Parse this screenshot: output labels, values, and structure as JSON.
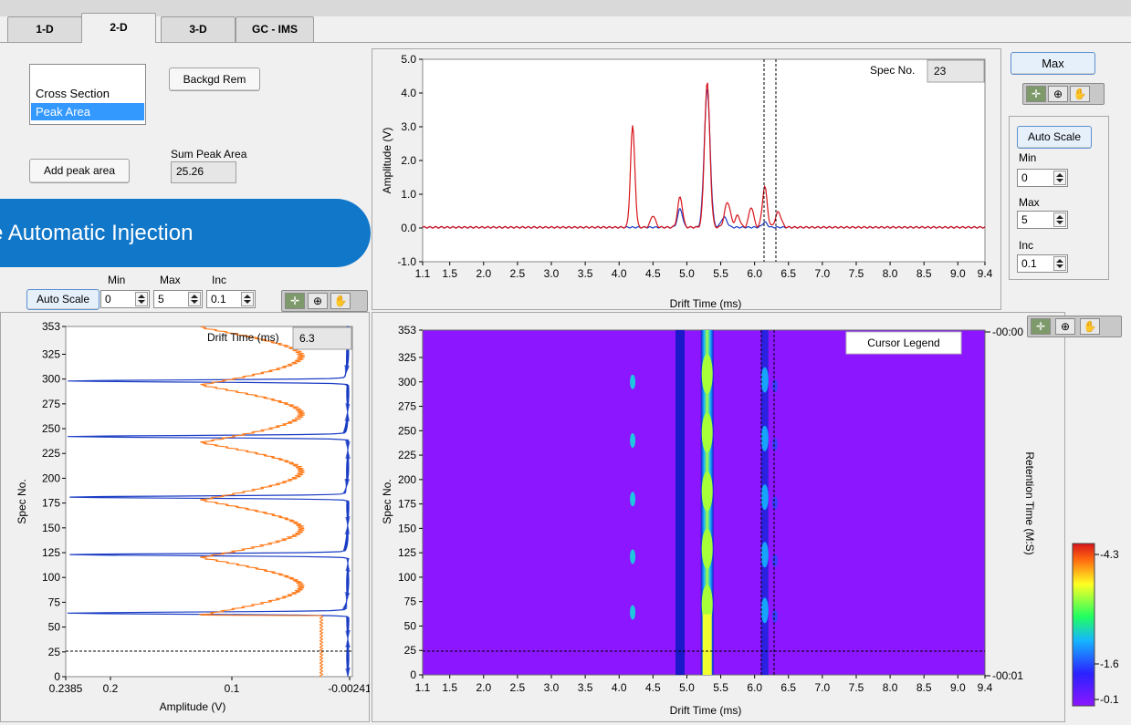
{
  "tabs": [
    {
      "label": "1-D",
      "active": false
    },
    {
      "label": "2-D",
      "active": true
    },
    {
      "label": "3-D",
      "active": false
    },
    {
      "label": "GC - IMS",
      "active": false
    }
  ],
  "mode_list": {
    "items": [
      "Cross Section",
      "Peak Area"
    ],
    "selected": "Peak Area"
  },
  "buttons": {
    "background_removal": "Backgd Rem",
    "add_peak_area": "Add peak area",
    "max": "Max",
    "auto_scale": "Auto Scale"
  },
  "sum_peak_area": {
    "label": "Sum Peak Area",
    "value": "25.26"
  },
  "banner": {
    "text": "e Automatic Injection"
  },
  "left_scale": {
    "min_label": "Min",
    "max_label": "Max",
    "inc_label": "Inc",
    "min": "0",
    "max": "5",
    "inc": "0.1"
  },
  "right_scale": {
    "min_label": "Min",
    "max_label": "Max",
    "inc_label": "Inc",
    "min": "0",
    "max": "5",
    "inc": "0.1"
  },
  "top_plot": {
    "spec_label": "Spec No.",
    "spec_value": "23",
    "x_label": "Drift Time (ms)",
    "y_label": "Amplitude (V)",
    "x_ticks": [
      "1.1",
      "1.5",
      "2.0",
      "2.5",
      "3.0",
      "3.5",
      "4.0",
      "4.5",
      "5.0",
      "5.5",
      "6.0",
      "6.5",
      "7.0",
      "7.5",
      "8.0",
      "8.5",
      "9.0",
      "9.4"
    ],
    "y_ticks": [
      "5.0",
      "4.0",
      "3.0",
      "2.0",
      "1.0",
      "0.0",
      "-1.0"
    ]
  },
  "left_plot": {
    "drift_label": "Drift Time (ms)",
    "drift_value": "6.3",
    "x_label": "Amplitude (V)",
    "y_label": "Spec No.",
    "x_ticks": [
      "0.2385",
      "0.2",
      "0.1",
      "-0.00241"
    ],
    "y_ticks": [
      "353",
      "325",
      "300",
      "275",
      "250",
      "225",
      "200",
      "175",
      "150",
      "125",
      "100",
      "75",
      "50",
      "25",
      "0"
    ]
  },
  "intensity_plot": {
    "x_label": "Drift Time (ms)",
    "y_label": "Spec No.",
    "right_label": "Retention Time (M:S)",
    "cursor_legend": "Cursor Legend",
    "time_top": "-00:00",
    "time_bottom": "-00:01",
    "x_ticks": [
      "1.1",
      "1.5",
      "2.0",
      "2.5",
      "3.0",
      "3.5",
      "4.0",
      "4.5",
      "5.0",
      "5.5",
      "6.0",
      "6.5",
      "7.0",
      "7.5",
      "8.0",
      "8.5",
      "9.0",
      "9.4"
    ],
    "y_ticks": [
      "353",
      "325",
      "300",
      "275",
      "250",
      "225",
      "200",
      "175",
      "150",
      "125",
      "100",
      "75",
      "50",
      "25",
      "0"
    ],
    "color_ticks": [
      "-4.3",
      "-1.6",
      "-0.1"
    ]
  },
  "colors": {
    "red_trace": "#d8141b",
    "blue_trace": "#1a3cc4",
    "orange_trace": "#ff7a1a",
    "heatmap_bg": "#8c16ff",
    "accent": "#1177c9"
  }
}
